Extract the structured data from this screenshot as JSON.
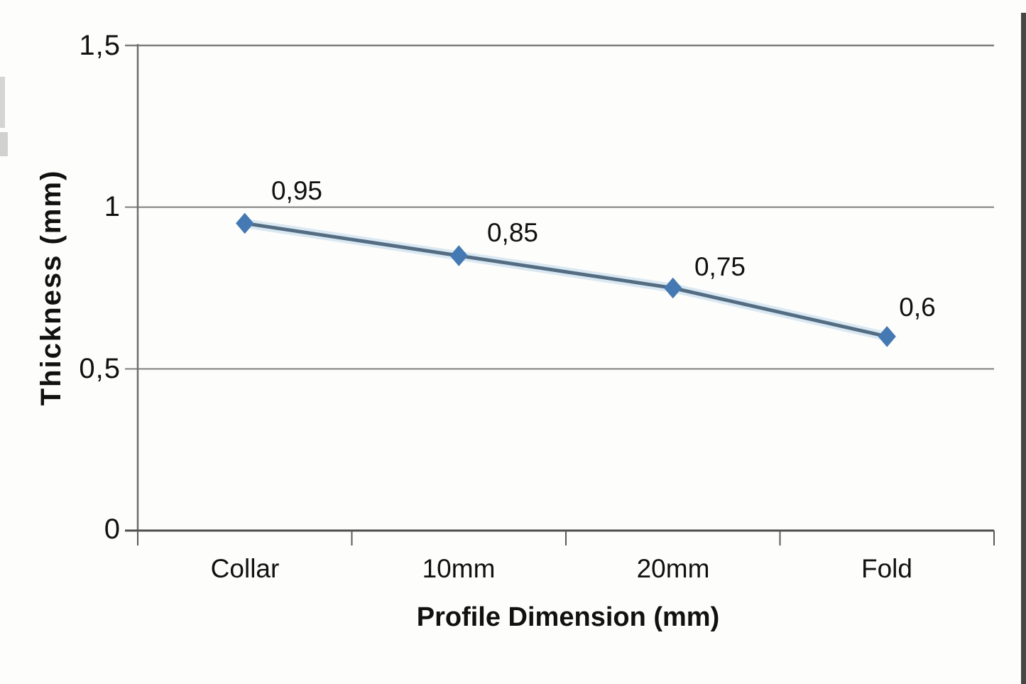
{
  "figure": {
    "background": "#fdfdfb",
    "right_border_color": "#474747"
  },
  "chart_data": {
    "type": "line",
    "title": "",
    "xlabel": "Profile Dimension (mm)",
    "ylabel": "Thickness (mm)",
    "categories": [
      "Collar",
      "10mm",
      "20mm",
      "Fold"
    ],
    "series": [
      {
        "name": "Thickness",
        "values": [
          0.95,
          0.85,
          0.75,
          0.6
        ],
        "labels": [
          "0,95",
          "0,85",
          "0,75",
          "0,6"
        ],
        "marker": "diamond"
      }
    ],
    "ylim": [
      0,
      1.5
    ],
    "yticks": [
      {
        "value": 0,
        "label": "0"
      },
      {
        "value": 0.5,
        "label": "0,5"
      },
      {
        "value": 1,
        "label": "1"
      },
      {
        "value": 1.5,
        "label": "1,5"
      }
    ],
    "grid": "horizontal",
    "legend": "none",
    "decimal_separator": ",",
    "colors": {
      "series_line": "#546d82",
      "series_halo": "#d9e8f2",
      "series_marker": "#4579b3",
      "grid_line": "#7e7e7e",
      "axis_line": "#4f4f4f",
      "text": "#111111"
    }
  }
}
